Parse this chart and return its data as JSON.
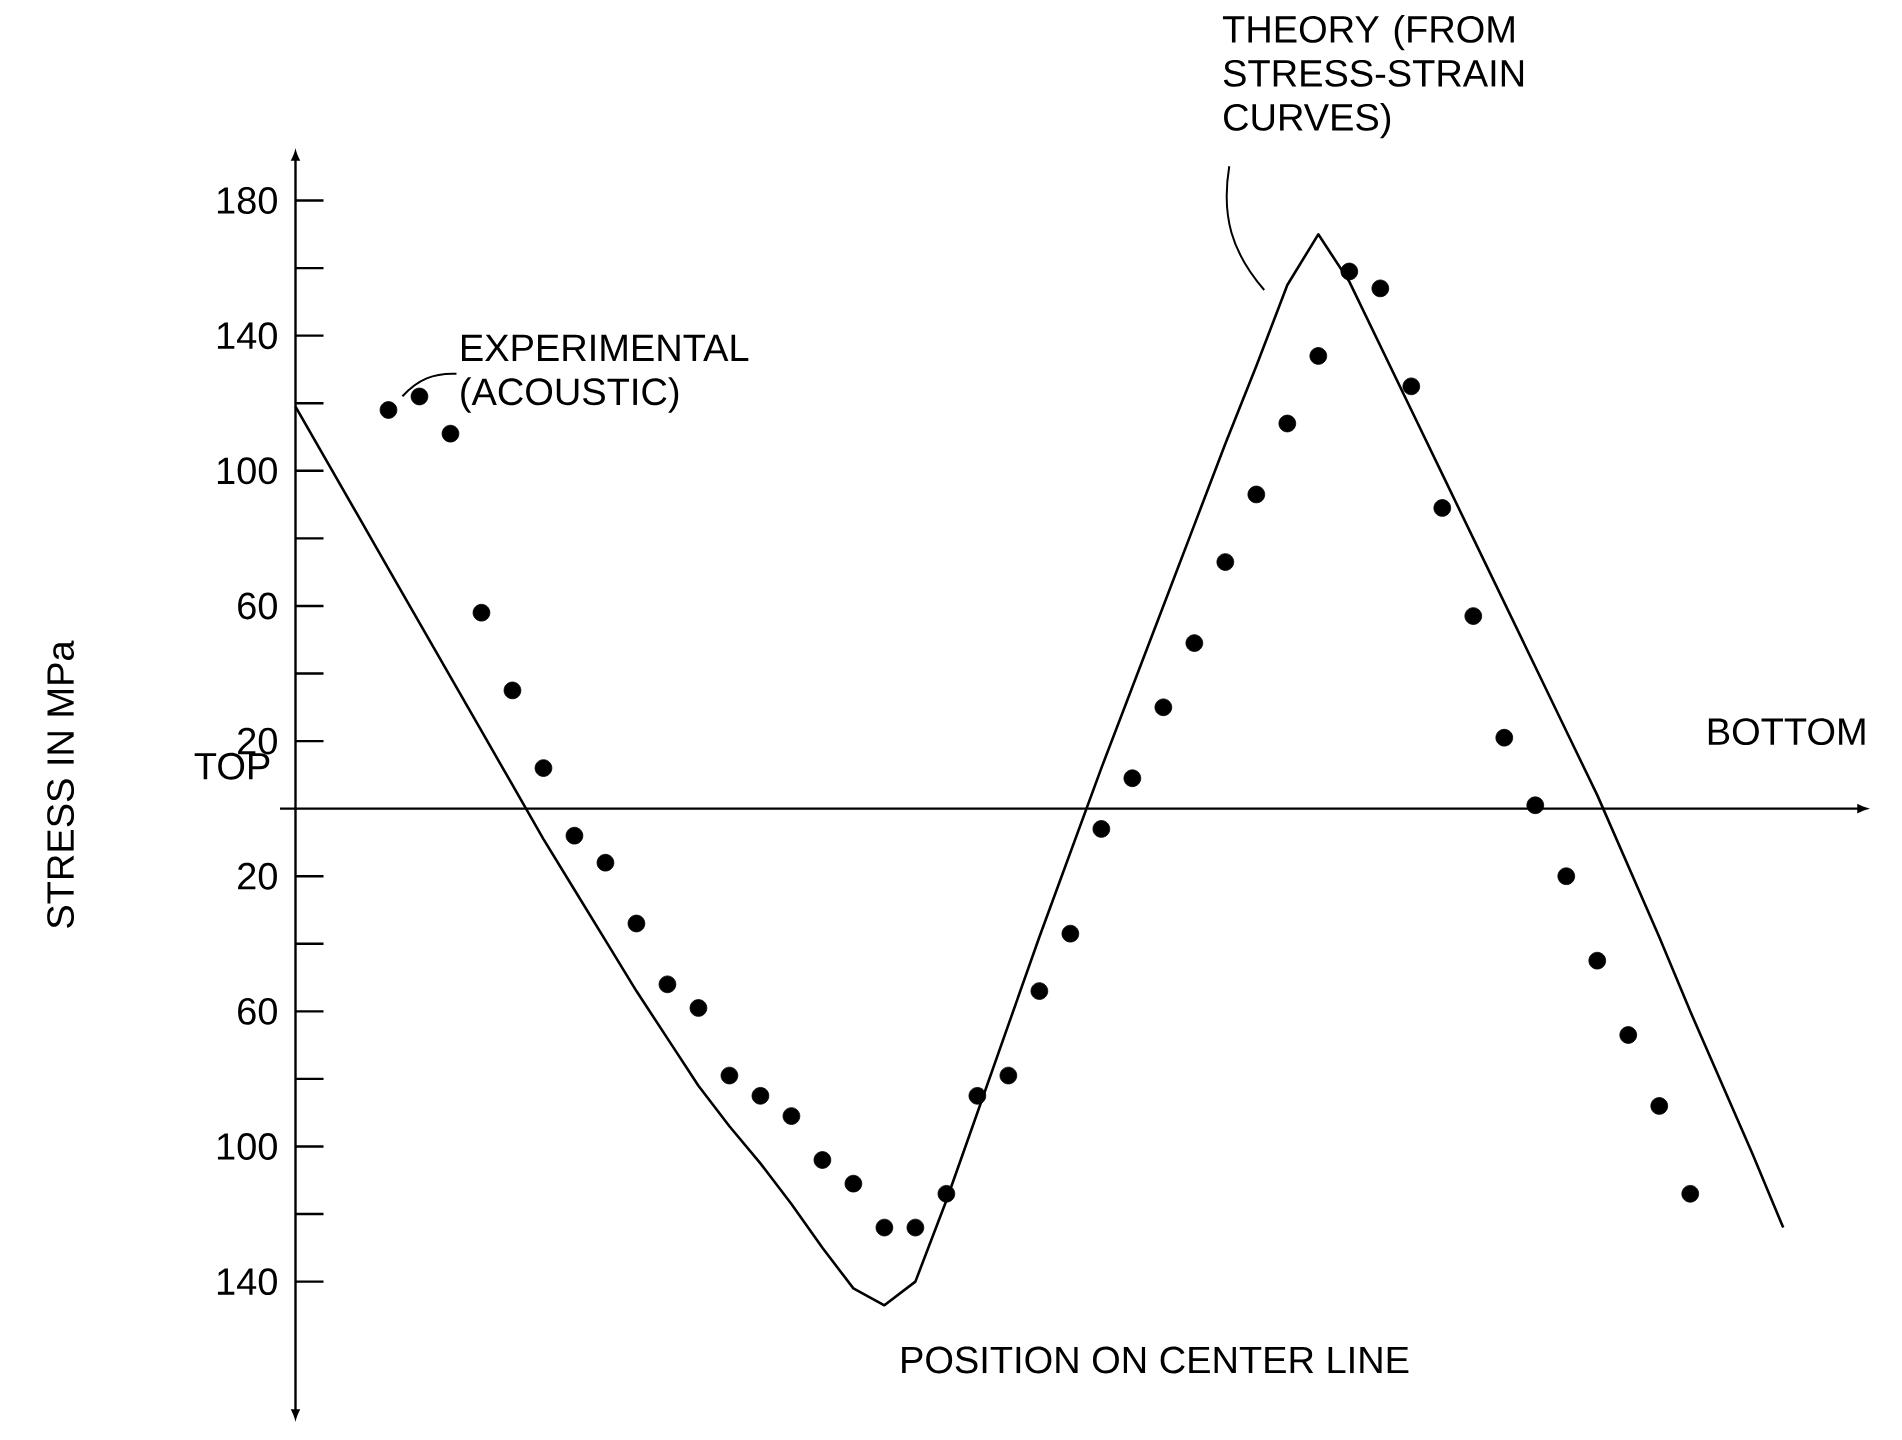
{
  "chart_data": {
    "type": "line",
    "xlabel": "POSITION ON CENTER LINE",
    "ylabel": "STRESS IN MPa",
    "categories": [
      null,
      null,
      null,
      null,
      null,
      null,
      null,
      null,
      null,
      null,
      null,
      null,
      null,
      null,
      null,
      null,
      null,
      null,
      null,
      null,
      null,
      null,
      null,
      null,
      null,
      null,
      null,
      null,
      null,
      null,
      null,
      null,
      null,
      null,
      null,
      null,
      null,
      null,
      null,
      null,
      null,
      null,
      null,
      null,
      null,
      null,
      null,
      null,
      null
    ],
    "ylim": [
      -178,
      192
    ],
    "yticks": [
      {
        "value": -140,
        "label": "140"
      },
      {
        "value": -120,
        "label": null
      },
      {
        "value": -100,
        "label": "100"
      },
      {
        "value": -80,
        "label": null
      },
      {
        "value": -60,
        "label": "60"
      },
      {
        "value": -40,
        "label": null
      },
      {
        "value": -20,
        "label": "20"
      },
      20,
      {
        "value": 40,
        "label": null
      },
      60,
      {
        "value": 80,
        "label": null
      },
      100,
      {
        "value": 120,
        "label": null
      },
      140,
      {
        "value": 160,
        "label": null
      },
      180
    ],
    "tick_labels": "y",
    "series": [
      {
        "color": "#000000",
        "marker": "none",
        "line_style": "solid",
        "values": [
          119,
          103,
          87,
          71,
          55,
          39,
          23,
          7,
          -9,
          -24,
          -39,
          -54,
          -68,
          -82,
          -94,
          -105,
          -117,
          -130,
          -142,
          -147,
          -140,
          -116,
          -90,
          -64,
          -38,
          -13,
          12,
          36,
          60,
          84,
          108,
          131,
          155,
          170,
          156,
          137,
          118,
          99,
          80,
          61,
          42,
          23,
          4,
          -17,
          -38,
          -60,
          -81,
          -102,
          -124
        ]
      },
      {
        "type": "scatter",
        "color": "#000000",
        "marker": "circle",
        "values": [
          null,
          null,
          null,
          118,
          122,
          111,
          58,
          35,
          12,
          -8,
          -16,
          -34,
          -52,
          -59,
          -79,
          -85,
          -91,
          -104,
          -111,
          -124,
          -124,
          -114,
          -85,
          -79,
          -54,
          -37,
          -6,
          9,
          30,
          49,
          73,
          93,
          114,
          134,
          159,
          154,
          125,
          89,
          57,
          21,
          1,
          -20,
          -45,
          -67,
          -88,
          -114,
          null,
          null,
          null
        ]
      }
    ],
    "annotations": [
      "EXPERIMENTAL (ACOUSTIC)",
      "THEORY (FROM STRESS-STRAIN CURVES)",
      "TOP",
      "BOTTOM"
    ]
  }
}
